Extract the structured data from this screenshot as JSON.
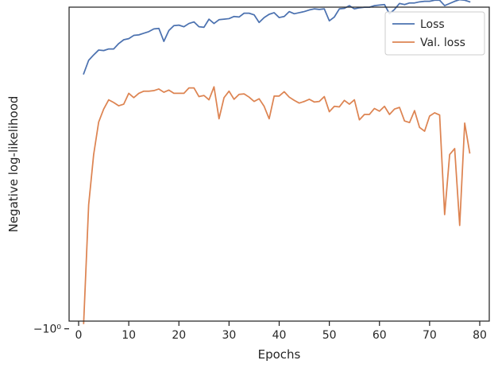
{
  "chart_data": {
    "type": "line",
    "title": "",
    "xlabel": "Epochs",
    "ylabel": "Negative log-likelihood",
    "xlim": [
      -1.9,
      81.9
    ],
    "x_ticks": [
      0,
      10,
      20,
      30,
      40,
      50,
      60,
      70,
      80
    ],
    "x_tick_labels": [
      "0",
      "10",
      "20",
      "30",
      "40",
      "50",
      "60",
      "70",
      "80"
    ],
    "y_scale": "symlog",
    "ylim": [
      -0.9858,
      -0.4058
    ],
    "y_ticks": [
      -1.0
    ],
    "y_tick_labels": [
      "−10⁰"
    ],
    "grid": false,
    "legend_position": "upper right",
    "series": [
      {
        "name": "Loss",
        "color": "#4c72b0",
        "x": [
          1,
          2,
          3,
          4,
          5,
          6,
          7,
          8,
          9,
          10,
          11,
          12,
          13,
          14,
          15,
          16,
          17,
          18,
          19,
          20,
          21,
          22,
          23,
          24,
          25,
          26,
          27,
          28,
          29,
          30,
          31,
          32,
          33,
          34,
          35,
          36,
          37,
          38,
          39,
          40,
          41,
          42,
          43,
          44,
          45,
          46,
          47,
          48,
          49,
          50,
          51,
          52,
          53,
          54,
          55,
          56,
          57,
          58,
          59,
          60,
          61,
          62,
          63,
          64,
          65,
          66,
          67,
          68,
          69,
          70,
          71,
          72,
          73,
          74,
          75,
          76,
          77,
          78
        ],
        "values": [
          -0.529,
          -0.504,
          -0.494,
          -0.485,
          -0.486,
          -0.483,
          -0.483,
          -0.473,
          -0.466,
          -0.464,
          -0.458,
          -0.457,
          -0.454,
          -0.451,
          -0.446,
          -0.445,
          -0.469,
          -0.449,
          -0.44,
          -0.439,
          -0.442,
          -0.436,
          -0.433,
          -0.442,
          -0.443,
          -0.428,
          -0.436,
          -0.429,
          -0.428,
          -0.427,
          -0.423,
          -0.424,
          -0.417,
          -0.417,
          -0.42,
          -0.434,
          -0.425,
          -0.419,
          -0.416,
          -0.425,
          -0.423,
          -0.414,
          -0.418,
          -0.416,
          -0.414,
          -0.411,
          -0.409,
          -0.41,
          -0.409,
          -0.431,
          -0.424,
          -0.409,
          -0.408,
          -0.403,
          -0.409,
          -0.407,
          -0.406,
          -0.406,
          -0.403,
          -0.402,
          -0.401,
          -0.418,
          -0.41,
          -0.399,
          -0.401,
          -0.398,
          -0.398,
          -0.396,
          -0.395,
          -0.395,
          -0.393,
          -0.393,
          -0.403,
          -0.399,
          -0.395,
          -0.392,
          -0.393,
          -0.396
        ]
      },
      {
        "name": "Val. loss",
        "color": "#dd8452",
        "x": [
          1,
          2,
          3,
          4,
          5,
          6,
          7,
          8,
          9,
          10,
          11,
          12,
          13,
          14,
          15,
          16,
          17,
          18,
          19,
          20,
          21,
          22,
          23,
          24,
          25,
          26,
          27,
          28,
          29,
          30,
          31,
          32,
          33,
          34,
          35,
          36,
          37,
          38,
          39,
          40,
          41,
          42,
          43,
          44,
          45,
          46,
          47,
          48,
          49,
          50,
          51,
          52,
          53,
          54,
          55,
          56,
          57,
          58,
          59,
          60,
          61,
          62,
          63,
          64,
          65,
          66,
          67,
          68,
          69,
          70,
          71,
          72,
          73,
          74,
          75,
          76,
          77,
          78
        ],
        "values": [
          -0.99,
          -0.771,
          -0.678,
          -0.618,
          -0.594,
          -0.577,
          -0.582,
          -0.588,
          -0.585,
          -0.565,
          -0.573,
          -0.565,
          -0.561,
          -0.561,
          -0.56,
          -0.557,
          -0.563,
          -0.559,
          -0.565,
          -0.565,
          -0.565,
          -0.555,
          -0.555,
          -0.571,
          -0.569,
          -0.577,
          -0.553,
          -0.612,
          -0.573,
          -0.561,
          -0.576,
          -0.567,
          -0.566,
          -0.572,
          -0.58,
          -0.575,
          -0.589,
          -0.612,
          -0.57,
          -0.57,
          -0.562,
          -0.572,
          -0.578,
          -0.583,
          -0.58,
          -0.576,
          -0.581,
          -0.58,
          -0.571,
          -0.599,
          -0.589,
          -0.59,
          -0.578,
          -0.585,
          -0.577,
          -0.614,
          -0.604,
          -0.604,
          -0.593,
          -0.598,
          -0.589,
          -0.604,
          -0.594,
          -0.591,
          -0.616,
          -0.619,
          -0.597,
          -0.628,
          -0.635,
          -0.607,
          -0.601,
          -0.605,
          -0.789,
          -0.678,
          -0.667,
          -0.809,
          -0.62,
          -0.675
        ]
      }
    ]
  }
}
